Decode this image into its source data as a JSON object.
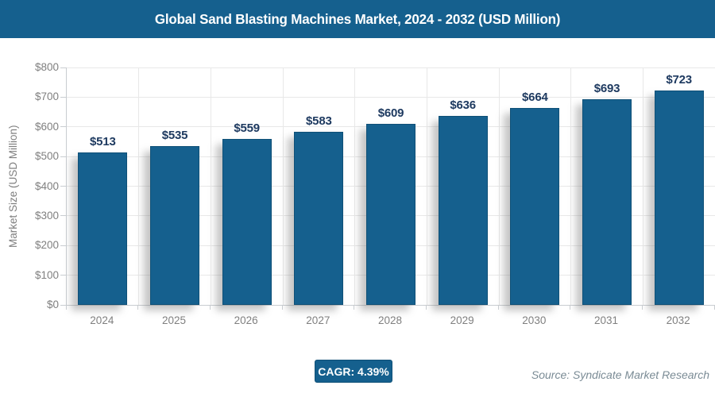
{
  "header": {
    "title": "Global Sand Blasting Machines Market, 2024 - 2032 (USD Million)"
  },
  "chart_data": {
    "type": "bar",
    "title": "Global Sand Blasting Machines Market, 2024 - 2032 (USD Million)",
    "categories": [
      "2024",
      "2025",
      "2026",
      "2027",
      "2028",
      "2029",
      "2030",
      "2031",
      "2032"
    ],
    "values": [
      513,
      535,
      559,
      583,
      609,
      636,
      664,
      693,
      723
    ],
    "bar_labels": [
      "$513",
      "$535",
      "$559",
      "$583",
      "$609",
      "$636",
      "$664",
      "$693",
      "$723"
    ],
    "xlabel": "",
    "ylabel": "Market Size (USD Million)",
    "ylim": [
      0,
      800
    ],
    "ytick_step": 100,
    "ytick_labels": [
      "$0",
      "$100",
      "$200",
      "$300",
      "$400",
      "$500",
      "$600",
      "$700",
      "$800"
    ],
    "grid": true,
    "legend": "none",
    "bar_color": "#15608E",
    "value_label_color": "#1E3A60",
    "axis_text_color": "#7F7F7F"
  },
  "footer": {
    "cagr_label": "CAGR: 4.39%",
    "source": "Source: Syndicate Market Research"
  },
  "colors": {
    "header_bg": "#15608E",
    "accent_blue": "#15608E",
    "gridline": "#E8E8E8",
    "axis_line": "#C9CDD1"
  }
}
